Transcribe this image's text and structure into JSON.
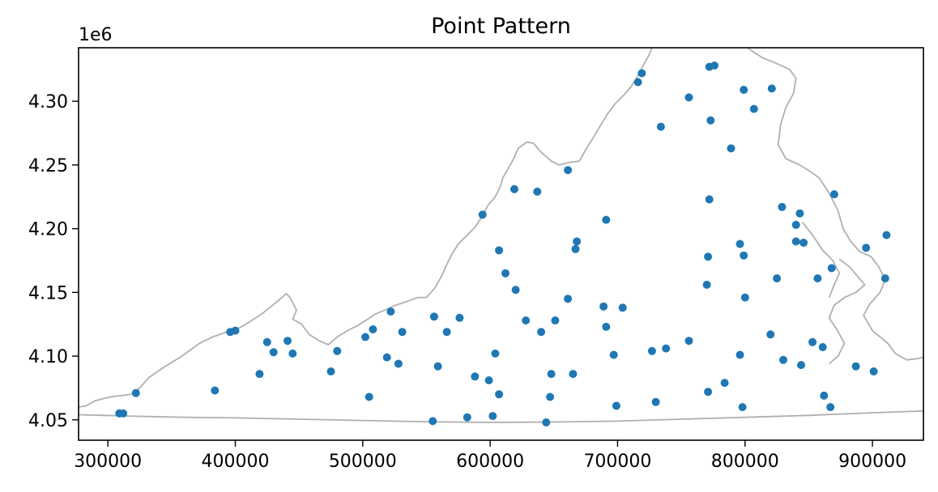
{
  "chart_data": {
    "type": "scatter",
    "title": "Point Pattern",
    "xlabel": "",
    "ylabel": "",
    "y_offset_label": "1e6",
    "xlim": [
      277000,
      940000
    ],
    "ylim": [
      4034000,
      4342000
    ],
    "x_ticks": [
      300000,
      400000,
      500000,
      600000,
      700000,
      800000,
      900000
    ],
    "x_tick_labels": [
      "300000",
      "400000",
      "500000",
      "600000",
      "700000",
      "800000",
      "900000"
    ],
    "y_ticks": [
      4050000,
      4100000,
      4150000,
      4200000,
      4250000,
      4300000
    ],
    "y_tick_labels": [
      "4.05",
      "4.10",
      "4.15",
      "4.20",
      "4.25",
      "4.30"
    ],
    "grid": false,
    "point_color": "#1f77b4",
    "boundary_color": "#b0b0b0",
    "points": [
      {
        "x": 309000,
        "y": 4055000
      },
      {
        "x": 312000,
        "y": 4055000
      },
      {
        "x": 322000,
        "y": 4071000
      },
      {
        "x": 384000,
        "y": 4073000
      },
      {
        "x": 396000,
        "y": 4119000
      },
      {
        "x": 400000,
        "y": 4120000
      },
      {
        "x": 419000,
        "y": 4086000
      },
      {
        "x": 425000,
        "y": 4111000
      },
      {
        "x": 430000,
        "y": 4103000
      },
      {
        "x": 441000,
        "y": 4112000
      },
      {
        "x": 445000,
        "y": 4102000
      },
      {
        "x": 475000,
        "y": 4088000
      },
      {
        "x": 480000,
        "y": 4104000
      },
      {
        "x": 502000,
        "y": 4115000
      },
      {
        "x": 505000,
        "y": 4068000
      },
      {
        "x": 508000,
        "y": 4121000
      },
      {
        "x": 519000,
        "y": 4099000
      },
      {
        "x": 522000,
        "y": 4135000
      },
      {
        "x": 528000,
        "y": 4094000
      },
      {
        "x": 531000,
        "y": 4119000
      },
      {
        "x": 555000,
        "y": 4049000
      },
      {
        "x": 556000,
        "y": 4131000
      },
      {
        "x": 559000,
        "y": 4092000
      },
      {
        "x": 566000,
        "y": 4119000
      },
      {
        "x": 576000,
        "y": 4130000
      },
      {
        "x": 582000,
        "y": 4052000
      },
      {
        "x": 588000,
        "y": 4084000
      },
      {
        "x": 594000,
        "y": 4211000
      },
      {
        "x": 599000,
        "y": 4081000
      },
      {
        "x": 602000,
        "y": 4053000
      },
      {
        "x": 604000,
        "y": 4102000
      },
      {
        "x": 607000,
        "y": 4183000
      },
      {
        "x": 607000,
        "y": 4070000
      },
      {
        "x": 612000,
        "y": 4165000
      },
      {
        "x": 619000,
        "y": 4231000
      },
      {
        "x": 620000,
        "y": 4152000
      },
      {
        "x": 628000,
        "y": 4128000
      },
      {
        "x": 637000,
        "y": 4229000
      },
      {
        "x": 640000,
        "y": 4119000
      },
      {
        "x": 644000,
        "y": 4048000
      },
      {
        "x": 647000,
        "y": 4068000
      },
      {
        "x": 648000,
        "y": 4086000
      },
      {
        "x": 651000,
        "y": 4128000
      },
      {
        "x": 661000,
        "y": 4246000
      },
      {
        "x": 661000,
        "y": 4145000
      },
      {
        "x": 665000,
        "y": 4086000
      },
      {
        "x": 667000,
        "y": 4184000
      },
      {
        "x": 668000,
        "y": 4190000
      },
      {
        "x": 689000,
        "y": 4139000
      },
      {
        "x": 691000,
        "y": 4207000
      },
      {
        "x": 691000,
        "y": 4123000
      },
      {
        "x": 697000,
        "y": 4101000
      },
      {
        "x": 699000,
        "y": 4061000
      },
      {
        "x": 704000,
        "y": 4138000
      },
      {
        "x": 716000,
        "y": 4315000
      },
      {
        "x": 719000,
        "y": 4322000
      },
      {
        "x": 727000,
        "y": 4104000
      },
      {
        "x": 730000,
        "y": 4064000
      },
      {
        "x": 734000,
        "y": 4280000
      },
      {
        "x": 738000,
        "y": 4106000
      },
      {
        "x": 756000,
        "y": 4303000
      },
      {
        "x": 756000,
        "y": 4112000
      },
      {
        "x": 770000,
        "y": 4156000
      },
      {
        "x": 771000,
        "y": 4072000
      },
      {
        "x": 771000,
        "y": 4178000
      },
      {
        "x": 772000,
        "y": 4327000
      },
      {
        "x": 772000,
        "y": 4223000
      },
      {
        "x": 773000,
        "y": 4285000
      },
      {
        "x": 776000,
        "y": 4328000
      },
      {
        "x": 784000,
        "y": 4079000
      },
      {
        "x": 789000,
        "y": 4263000
      },
      {
        "x": 796000,
        "y": 4188000
      },
      {
        "x": 796000,
        "y": 4101000
      },
      {
        "x": 798000,
        "y": 4060000
      },
      {
        "x": 799000,
        "y": 4309000
      },
      {
        "x": 799000,
        "y": 4179000
      },
      {
        "x": 800000,
        "y": 4146000
      },
      {
        "x": 807000,
        "y": 4294000
      },
      {
        "x": 820000,
        "y": 4117000
      },
      {
        "x": 821000,
        "y": 4310000
      },
      {
        "x": 825000,
        "y": 4161000
      },
      {
        "x": 829000,
        "y": 4217000
      },
      {
        "x": 830000,
        "y": 4097000
      },
      {
        "x": 840000,
        "y": 4203000
      },
      {
        "x": 840000,
        "y": 4190000
      },
      {
        "x": 843000,
        "y": 4212000
      },
      {
        "x": 844000,
        "y": 4093000
      },
      {
        "x": 846000,
        "y": 4189000
      },
      {
        "x": 853000,
        "y": 4111000
      },
      {
        "x": 857000,
        "y": 4161000
      },
      {
        "x": 861000,
        "y": 4107000
      },
      {
        "x": 862000,
        "y": 4069000
      },
      {
        "x": 867000,
        "y": 4060000
      },
      {
        "x": 868000,
        "y": 4169000
      },
      {
        "x": 870000,
        "y": 4227000
      },
      {
        "x": 887000,
        "y": 4092000
      },
      {
        "x": 895000,
        "y": 4185000
      },
      {
        "x": 901000,
        "y": 4088000
      },
      {
        "x": 910000,
        "y": 4161000
      },
      {
        "x": 911000,
        "y": 4195000
      }
    ],
    "boundary_main": [
      [
        277000,
        4060000
      ],
      [
        283000,
        4061000
      ],
      [
        290000,
        4065000
      ],
      [
        302000,
        4068000
      ],
      [
        318000,
        4070000
      ],
      [
        325000,
        4075000
      ],
      [
        332000,
        4083000
      ],
      [
        342000,
        4090000
      ],
      [
        358000,
        4100000
      ],
      [
        372000,
        4110000
      ],
      [
        382000,
        4115000
      ],
      [
        396000,
        4120000
      ],
      [
        403000,
        4122000
      ],
      [
        410000,
        4126000
      ],
      [
        422000,
        4134000
      ],
      [
        433000,
        4143000
      ],
      [
        440000,
        4149000
      ],
      [
        443000,
        4146000
      ],
      [
        448000,
        4136000
      ],
      [
        445000,
        4129000
      ],
      [
        452000,
        4125000
      ],
      [
        458000,
        4117000
      ],
      [
        466000,
        4112000
      ],
      [
        473000,
        4109000
      ],
      [
        480000,
        4115000
      ],
      [
        488000,
        4120000
      ],
      [
        496000,
        4124000
      ],
      [
        504000,
        4129000
      ],
      [
        510000,
        4133000
      ],
      [
        517000,
        4136000
      ],
      [
        526000,
        4140000
      ],
      [
        535000,
        4143000
      ],
      [
        543000,
        4146000
      ],
      [
        550000,
        4146000
      ],
      [
        557000,
        4154000
      ],
      [
        562000,
        4163000
      ],
      [
        566000,
        4172000
      ],
      [
        570000,
        4180000
      ],
      [
        575000,
        4188000
      ],
      [
        581000,
        4194000
      ],
      [
        588000,
        4201000
      ],
      [
        594000,
        4210000
      ],
      [
        598000,
        4218000
      ],
      [
        604000,
        4225000
      ],
      [
        608000,
        4233000
      ],
      [
        610000,
        4240000
      ],
      [
        614000,
        4247000
      ],
      [
        618000,
        4254000
      ],
      [
        622000,
        4263000
      ],
      [
        629000,
        4268000
      ],
      [
        634000,
        4267000
      ],
      [
        640000,
        4260000
      ],
      [
        648000,
        4253000
      ],
      [
        654000,
        4250000
      ],
      [
        662000,
        4252000
      ],
      [
        670000,
        4253000
      ],
      [
        675000,
        4262000
      ],
      [
        680000,
        4270000
      ],
      [
        686000,
        4280000
      ],
      [
        692000,
        4290000
      ],
      [
        698000,
        4298000
      ],
      [
        705000,
        4305000
      ],
      [
        711000,
        4312000
      ],
      [
        716000,
        4320000
      ],
      [
        720000,
        4328000
      ],
      [
        724000,
        4335000
      ],
      [
        727000,
        4342000
      ]
    ],
    "boundary_east": [
      [
        802000,
        4342000
      ],
      [
        806000,
        4339000
      ],
      [
        814000,
        4334000
      ],
      [
        824000,
        4330000
      ],
      [
        835000,
        4325000
      ],
      [
        840000,
        4318000
      ],
      [
        838000,
        4306000
      ],
      [
        832000,
        4295000
      ],
      [
        828000,
        4282000
      ],
      [
        826000,
        4266000
      ],
      [
        832000,
        4255000
      ],
      [
        843000,
        4250000
      ],
      [
        851000,
        4245000
      ],
      [
        858000,
        4240000
      ],
      [
        866000,
        4228000
      ],
      [
        873000,
        4214000
      ],
      [
        877000,
        4200000
      ],
      [
        883000,
        4190000
      ],
      [
        890000,
        4182000
      ],
      [
        899000,
        4178000
      ],
      [
        905000,
        4170000
      ],
      [
        910000,
        4160000
      ],
      [
        906000,
        4150000
      ],
      [
        898000,
        4141000
      ],
      [
        893000,
        4132000
      ],
      [
        900000,
        4120000
      ],
      [
        912000,
        4110000
      ],
      [
        918000,
        4102000
      ],
      [
        927000,
        4097000
      ],
      [
        935000,
        4098000
      ],
      [
        940000,
        4099000
      ]
    ],
    "boundary_south": [
      [
        277000,
        4054000
      ],
      [
        315000,
        4053000
      ],
      [
        360000,
        4052000
      ],
      [
        400000,
        4051500
      ],
      [
        450000,
        4050500
      ],
      [
        500000,
        4049500
      ],
      [
        550000,
        4048500
      ],
      [
        600000,
        4048000
      ],
      [
        650000,
        4048300
      ],
      [
        700000,
        4049000
      ],
      [
        750000,
        4050500
      ],
      [
        800000,
        4052000
      ],
      [
        850000,
        4053500
      ],
      [
        900000,
        4055500
      ],
      [
        940000,
        4057000
      ]
    ],
    "boundary_bay": [
      [
        845000,
        4205000
      ],
      [
        853000,
        4195000
      ],
      [
        861000,
        4183000
      ],
      [
        869000,
        4175000
      ],
      [
        874000,
        4165000
      ],
      [
        870000,
        4156000
      ],
      [
        866000,
        4146000
      ]
    ],
    "boundary_peninsula": [
      [
        874000,
        4176000
      ],
      [
        882000,
        4170000
      ],
      [
        888000,
        4163000
      ],
      [
        894000,
        4156000
      ],
      [
        887000,
        4150000
      ],
      [
        878000,
        4146000
      ],
      [
        870000,
        4140000
      ],
      [
        866000,
        4130000
      ],
      [
        872000,
        4121000
      ],
      [
        878000,
        4110000
      ],
      [
        873000,
        4100000
      ],
      [
        866000,
        4094000
      ]
    ]
  }
}
